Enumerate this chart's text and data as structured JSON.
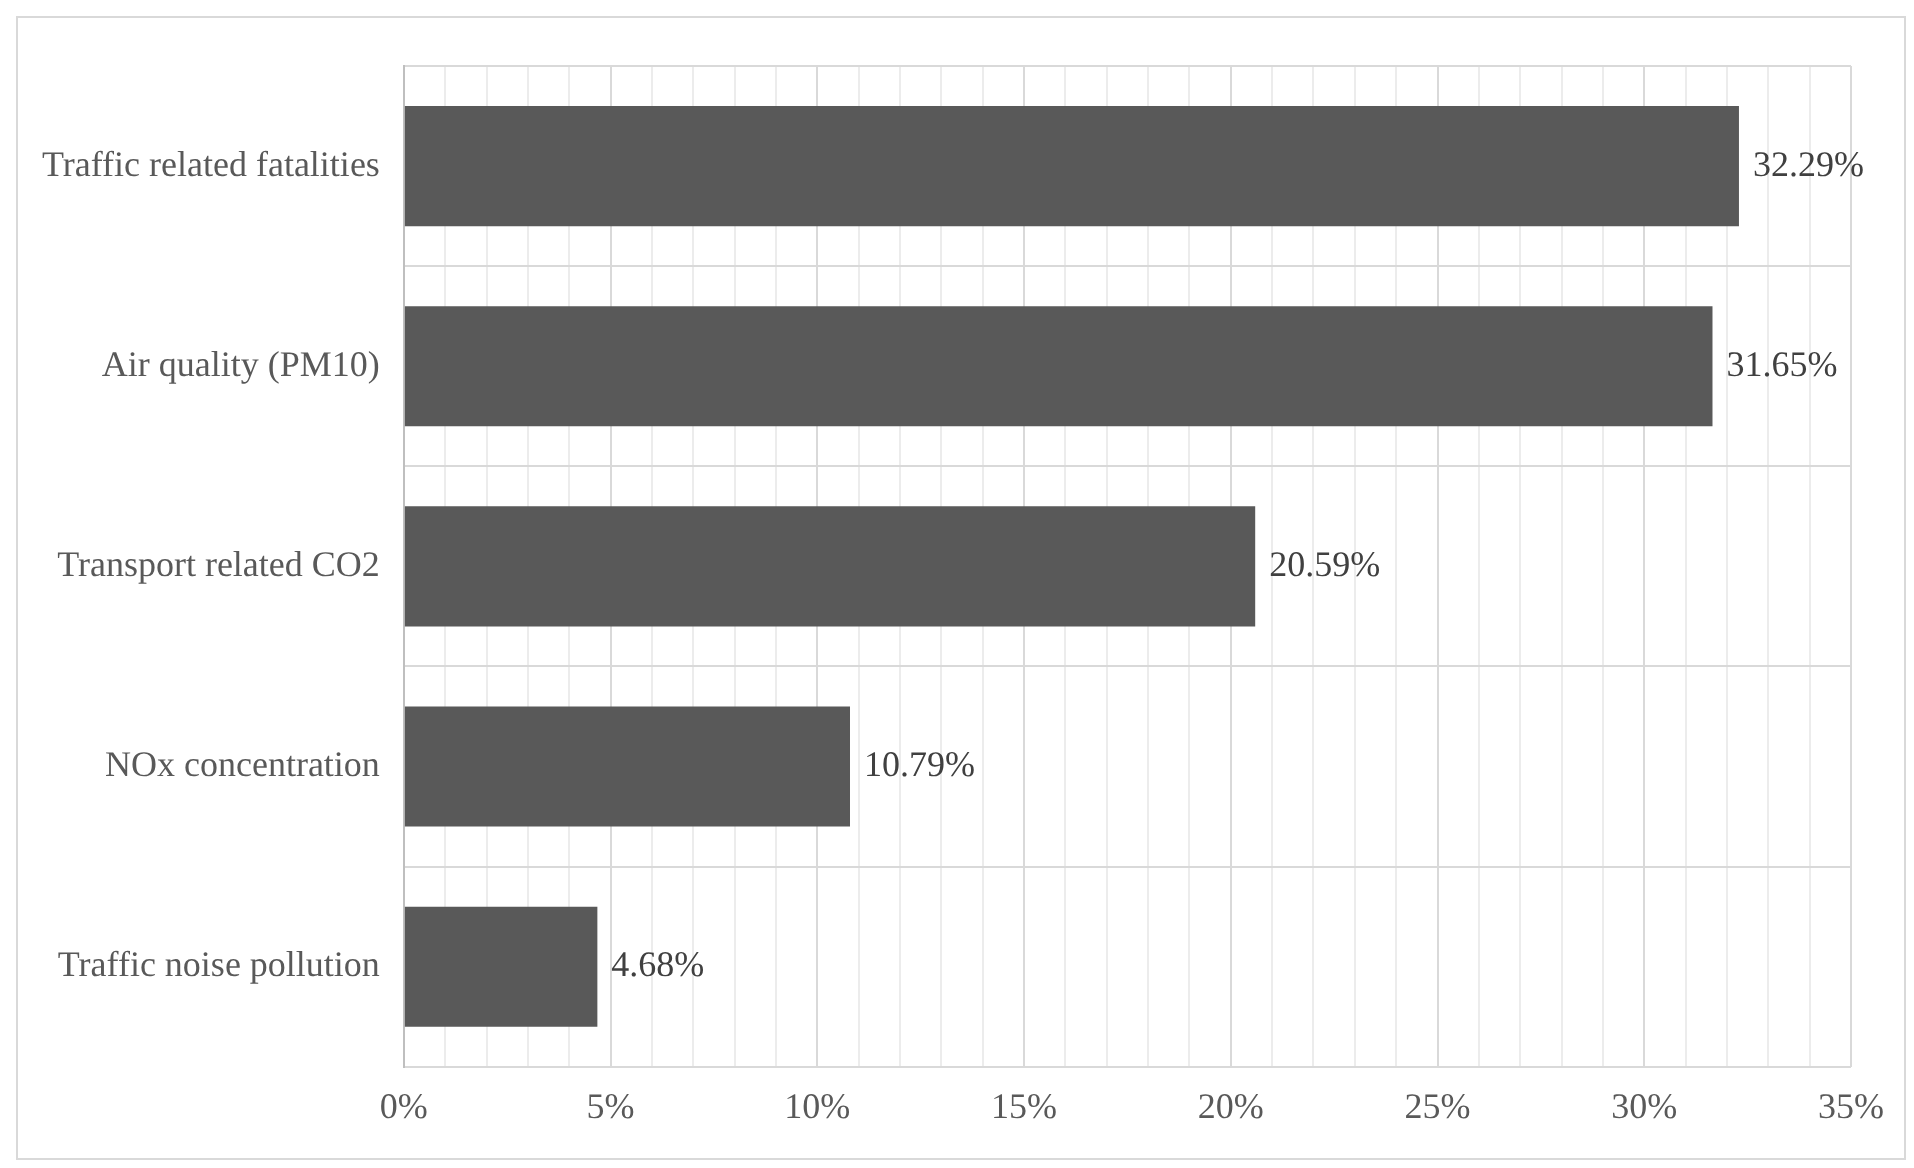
{
  "chart_data": {
    "type": "bar",
    "orientation": "horizontal",
    "categories": [
      "Traffic related fatalities",
      "Air quality (PM10)",
      "Transport related CO2",
      "NOx concentration",
      "Traffic noise pollution"
    ],
    "values": [
      32.29,
      31.65,
      20.59,
      10.79,
      4.68
    ],
    "value_labels": [
      "32.29%",
      "31.65%",
      "20.59%",
      "10.79%",
      "4.68%"
    ],
    "color": "#595959",
    "xlim": [
      0,
      35
    ],
    "xticks": [
      {
        "value": 0,
        "label": "0%"
      },
      {
        "value": 1,
        "label": null
      },
      {
        "value": 2,
        "label": null
      },
      {
        "value": 3,
        "label": null
      },
      {
        "value": 4,
        "label": null
      },
      {
        "value": 5,
        "label": "5%"
      },
      {
        "value": 6,
        "label": null
      },
      {
        "value": 7,
        "label": null
      },
      {
        "value": 8,
        "label": null
      },
      {
        "value": 9,
        "label": null
      },
      {
        "value": 10,
        "label": "10%"
      },
      {
        "value": 11,
        "label": null
      },
      {
        "value": 12,
        "label": null
      },
      {
        "value": 13,
        "label": null
      },
      {
        "value": 14,
        "label": null
      },
      {
        "value": 15,
        "label": "15%"
      },
      {
        "value": 16,
        "label": null
      },
      {
        "value": 17,
        "label": null
      },
      {
        "value": 18,
        "label": null
      },
      {
        "value": 19,
        "label": null
      },
      {
        "value": 20,
        "label": "20%"
      },
      {
        "value": 21,
        "label": null
      },
      {
        "value": 22,
        "label": null
      },
      {
        "value": 23,
        "label": null
      },
      {
        "value": 24,
        "label": null
      },
      {
        "value": 25,
        "label": "25%"
      },
      {
        "value": 26,
        "label": null
      },
      {
        "value": 27,
        "label": null
      },
      {
        "value": 28,
        "label": null
      },
      {
        "value": 29,
        "label": null
      },
      {
        "value": 30,
        "label": "30%"
      },
      {
        "value": 31,
        "label": null
      },
      {
        "value": 32,
        "label": null
      },
      {
        "value": 33,
        "label": null
      },
      {
        "value": 34,
        "label": null
      },
      {
        "value": 35,
        "label": "35%"
      }
    ],
    "grid": true,
    "legend": false
  }
}
